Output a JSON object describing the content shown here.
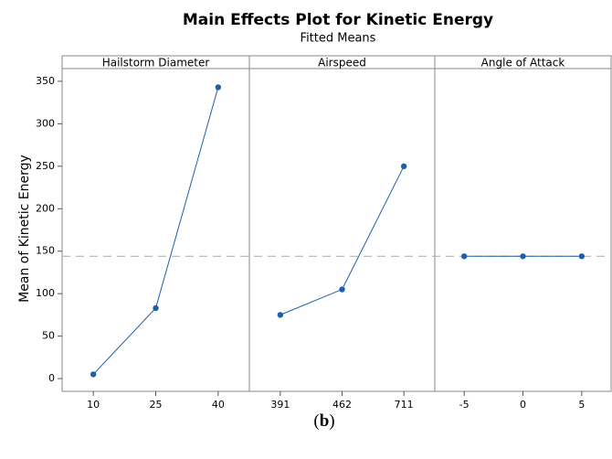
{
  "title": "Main Effects Plot for Kinetic Energy",
  "subtitle": "Fitted Means",
  "ylabel": "Mean of Kinetic Energy",
  "caption": "(b)",
  "ylim": [
    -15,
    365
  ],
  "yticks": [
    0,
    50,
    100,
    150,
    200,
    250,
    300,
    350
  ],
  "reference_line": 144,
  "color": "#1f5fa8",
  "chart_data": [
    {
      "type": "line",
      "title": "Hailstorm Diameter",
      "categories": [
        "10",
        "25",
        "40"
      ],
      "values": [
        5,
        83,
        343
      ]
    },
    {
      "type": "line",
      "title": "Airspeed",
      "categories": [
        "391",
        "462",
        "711"
      ],
      "values": [
        75,
        105,
        250
      ]
    },
    {
      "type": "line",
      "title": "Angle of Attack",
      "categories": [
        "-5",
        "0",
        "5"
      ],
      "values": [
        144,
        144,
        144
      ]
    }
  ]
}
